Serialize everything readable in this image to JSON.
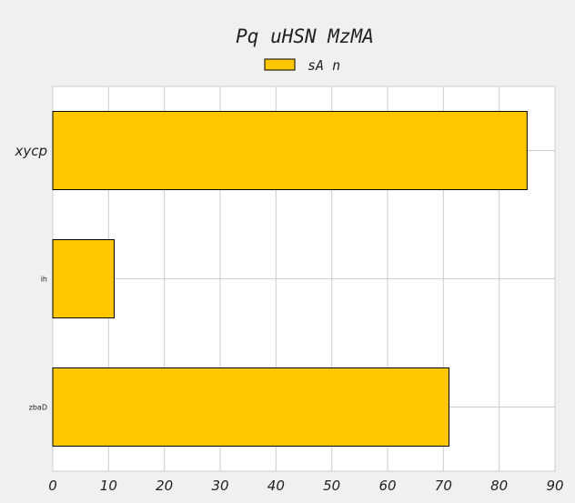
{
  "chart_data": {
    "type": "bar",
    "orientation": "horizontal",
    "title": "Pq uHSN MzMA",
    "xlabel": "",
    "ylabel": "",
    "categories": [
      "xycp",
      "ih",
      "zbaD"
    ],
    "series": [
      {
        "name": "sA n",
        "values": [
          85,
          11,
          71
        ],
        "color": "#ffc700"
      }
    ],
    "xlim": [
      0,
      90
    ],
    "x_ticks": [
      0,
      10,
      20,
      30,
      40,
      50,
      60,
      70,
      80,
      90
    ],
    "grid": true,
    "legend_position": "top-center"
  }
}
